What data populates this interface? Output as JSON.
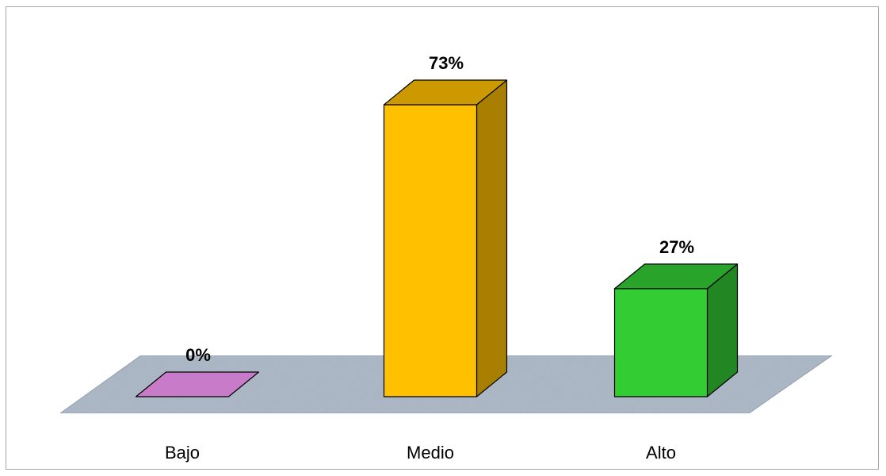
{
  "chart_data": {
    "type": "bar",
    "categories": [
      "Bajo",
      "Medio",
      "Alto"
    ],
    "values": [
      0,
      73,
      27
    ],
    "value_labels": [
      "0%",
      "73%",
      "27%"
    ],
    "unit": "%",
    "ylim": [
      0,
      73
    ],
    "grid": false,
    "legend": "none",
    "style": "3d-column",
    "colors": {
      "bars": [
        "#c77bc9",
        "#ffc000",
        "#33cc33"
      ],
      "floor": "#a9b6c4"
    }
  }
}
